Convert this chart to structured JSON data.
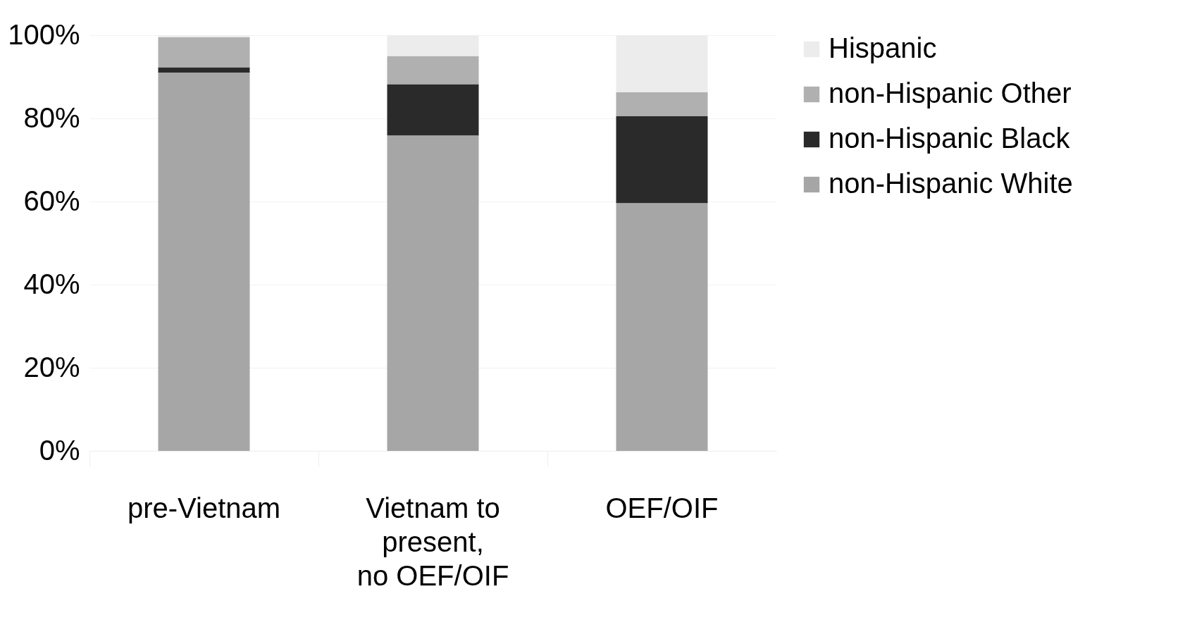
{
  "chart_data": {
    "type": "bar",
    "stacked": true,
    "categories": [
      "pre-Vietnam",
      "Vietnam to present, no OEF/OIF",
      "OEF/OIF"
    ],
    "series": [
      {
        "name": "non-Hispanic White",
        "color": "#a6a6a6",
        "values": [
          91.0,
          75.9,
          59.6
        ]
      },
      {
        "name": "non-Hispanic Black",
        "color": "#2a2a2a",
        "values": [
          1.3,
          12.3,
          20.9
        ]
      },
      {
        "name": "non-Hispanic Other",
        "color": "#b0b0b0",
        "values": [
          7.2,
          6.8,
          5.8
        ]
      },
      {
        "name": "Hispanic",
        "color": "#ececec",
        "values": [
          0.5,
          5.0,
          13.7
        ]
      }
    ],
    "ylim": [
      0,
      100
    ],
    "yticks": [
      {
        "value": 0,
        "label": "0%"
      },
      {
        "value": 20,
        "label": "20%"
      },
      {
        "value": 40,
        "label": "40%"
      },
      {
        "value": 60,
        "label": "60%"
      },
      {
        "value": 80,
        "label": "80%"
      },
      {
        "value": 100,
        "label": "100%"
      }
    ],
    "grid": "y",
    "legend": "right"
  }
}
